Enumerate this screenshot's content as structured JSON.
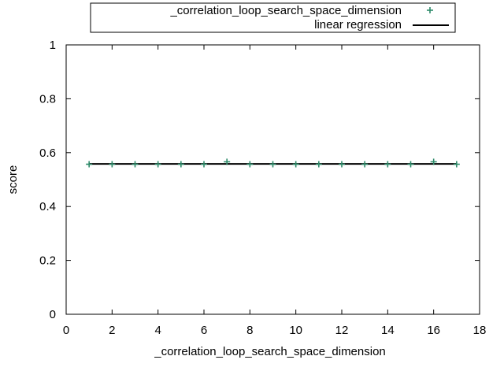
{
  "chart_data": {
    "type": "scatter",
    "title": "",
    "xlabel": "_correlation_loop_search_space_dimension",
    "ylabel": "score",
    "xlim": [
      0,
      18
    ],
    "ylim": [
      0,
      1
    ],
    "xticks": [
      "0",
      "2",
      "4",
      "6",
      "8",
      "10",
      "12",
      "14",
      "16",
      "18"
    ],
    "yticks": [
      "0",
      "0.2",
      "0.4",
      "0.6",
      "0.8",
      "1"
    ],
    "legend_position": "top-center-outside",
    "grid": false,
    "series": [
      {
        "name": "_correlation_loop_search_space_dimension",
        "type": "scatter",
        "marker": "plus",
        "color": "#2e8b6a",
        "x": [
          1,
          2,
          3,
          4,
          5,
          6,
          7,
          8,
          9,
          10,
          11,
          12,
          13,
          14,
          15,
          16,
          17
        ],
        "y": [
          0.557,
          0.557,
          0.557,
          0.557,
          0.557,
          0.557,
          0.566,
          0.557,
          0.557,
          0.557,
          0.557,
          0.557,
          0.557,
          0.557,
          0.557,
          0.566,
          0.557
        ]
      },
      {
        "name": "linear regression",
        "type": "line",
        "color": "#000000",
        "x": [
          1,
          17
        ],
        "y": [
          0.558,
          0.558
        ]
      }
    ]
  }
}
